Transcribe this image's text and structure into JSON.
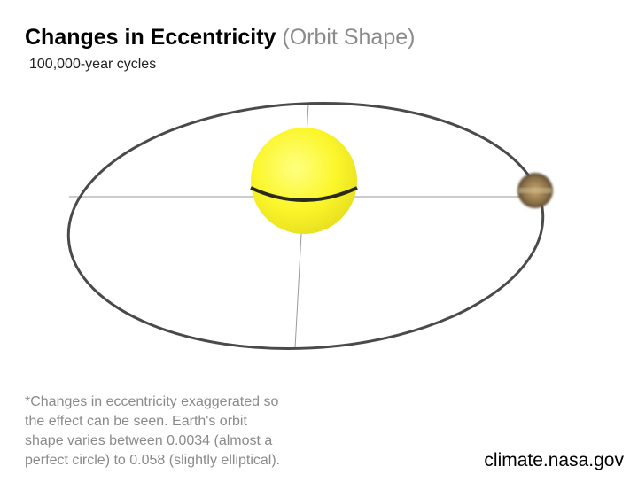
{
  "title": "Changes in Eccentricity",
  "title_suffix": "(Orbit Shape)",
  "subtitle": "100,000-year cycles",
  "footnote": [
    "*Changes in eccentricity exaggerated so",
    "the effect can be seen. Earth's orbit",
    "shape varies between 0.0034 (almost a",
    "perfect circle) to 0.058 (slightly elliptical)."
  ],
  "source": "climate.nasa.gov"
}
